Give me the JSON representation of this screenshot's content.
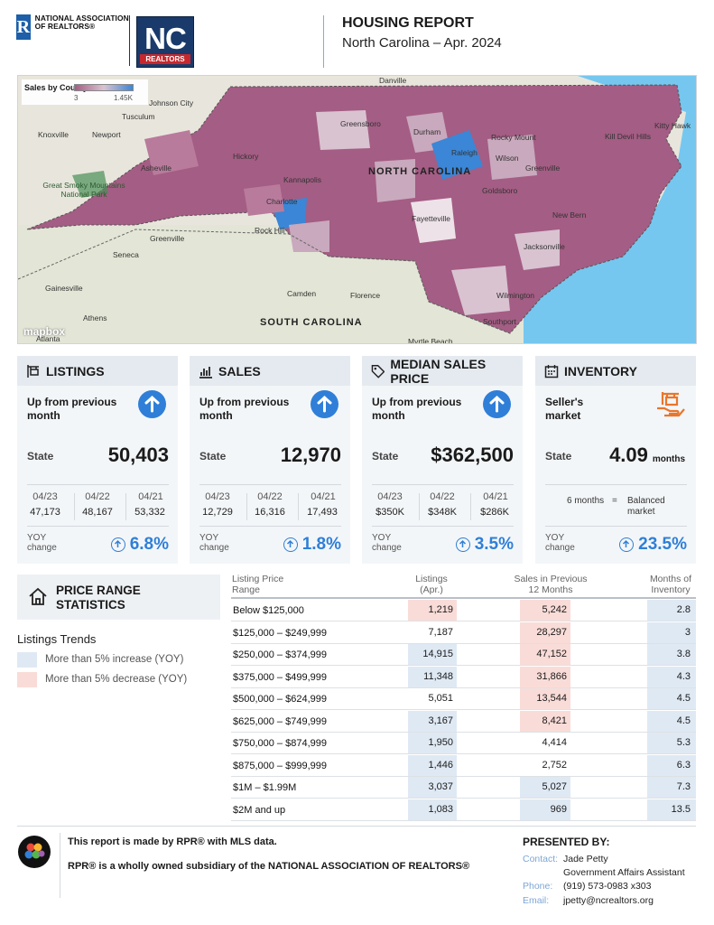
{
  "header": {
    "nar_logo_text": "NATIONAL ASSOCIATION OF REALTORS®",
    "nc_logo_main": "NC",
    "nc_logo_sub": "REALTORS",
    "title": "HOUSING REPORT",
    "subtitle": "North Carolina  –  Apr. 2024"
  },
  "map": {
    "legend_title": "Sales by County",
    "legend_min": "3",
    "legend_max": "1.45K",
    "attribution": "mapbox",
    "state_label": "NORTH CAROLINA",
    "south_label": "SOUTH CAROLINA",
    "place_labels": [
      "Danville",
      "Johnson City",
      "Tusculum",
      "Knoxville",
      "Newport",
      "Greensboro",
      "Durham",
      "Raleigh",
      "Rocky Mount",
      "Wilson",
      "Asheville",
      "Hickory",
      "Kannapolis",
      "Greenville",
      "Goldsboro",
      "Charlotte",
      "Fayetteville",
      "New Bern",
      "Rock Hill",
      "Jacksonville",
      "Greenville",
      "Seneca",
      "Camden",
      "Florence",
      "Wilmington",
      "Athens",
      "Gainesville",
      "Southport",
      "Myrtle Beach",
      "Kill Devil Hills",
      "Great Smoky Mountains National Park",
      "Atlanta",
      "Kitty Hawk"
    ],
    "colors": {
      "low": "#a45d84",
      "mid": "#d9c3d1",
      "high": "#3b86d6",
      "water": "#75c7ef",
      "land": "#e8e6dc"
    }
  },
  "cards": [
    {
      "title": "LISTINGS",
      "icon": "listing-sign-icon",
      "trend": "Up from previous month",
      "state_label": "State",
      "state_value": "50,403",
      "periods": [
        "04/23",
        "04/22",
        "04/21"
      ],
      "values": [
        "47,173",
        "48,167",
        "53,332"
      ],
      "yoy_label": "YOY change",
      "yoy": "6.8%"
    },
    {
      "title": "SALES",
      "icon": "bar-chart-icon",
      "trend": "Up from previous month",
      "state_label": "State",
      "state_value": "12,970",
      "periods": [
        "04/23",
        "04/22",
        "04/21"
      ],
      "values": [
        "12,729",
        "16,316",
        "17,493"
      ],
      "yoy_label": "YOY change",
      "yoy": "1.8%"
    },
    {
      "title": "MEDIAN SALES PRICE",
      "icon": "price-tag-icon",
      "trend": "Up from previous month",
      "state_label": "State",
      "state_value": "$362,500",
      "periods": [
        "04/23",
        "04/22",
        "04/21"
      ],
      "values": [
        "$350K",
        "$348K",
        "$286K"
      ],
      "yoy_label": "YOY change",
      "yoy": "3.5%"
    },
    {
      "title": "INVENTORY",
      "icon": "calendar-icon",
      "trend": "Seller's market",
      "state_label": "State",
      "state_value": "4.09",
      "state_unit": "months",
      "balanced_left": "6 months",
      "balanced_eq": "=",
      "balanced_right": "Balanced market",
      "yoy_label": "YOY change",
      "yoy": "23.5%"
    }
  ],
  "price_range": {
    "title": "PRICE RANGE STATISTICS",
    "trends_title": "Listings Trends",
    "legend_increase": "More than 5% increase (YOY)",
    "legend_decrease": "More than 5% decrease (YOY)",
    "increase_color": "#dfe9f4",
    "decrease_color": "#f9dcd8",
    "headers": {
      "range": "Listing Price Range",
      "listings": "Listings (Apr.)",
      "sales": "Sales in Previous 12 Months",
      "months": "Months of Inventory"
    },
    "rows": [
      {
        "range": "Below $125,000",
        "listings": "1,219",
        "sales": "5,242",
        "months": "2.8",
        "l": "dec",
        "s": "dec"
      },
      {
        "range": "$125,000  –  $249,999",
        "listings": "7,187",
        "sales": "28,297",
        "months": "3",
        "l": "",
        "s": "dec"
      },
      {
        "range": "$250,000  –  $374,999",
        "listings": "14,915",
        "sales": "47,152",
        "months": "3.8",
        "l": "inc",
        "s": "dec"
      },
      {
        "range": "$375,000  –  $499,999",
        "listings": "11,348",
        "sales": "31,866",
        "months": "4.3",
        "l": "inc",
        "s": "dec"
      },
      {
        "range": "$500,000  –  $624,999",
        "listings": "5,051",
        "sales": "13,544",
        "months": "4.5",
        "l": "",
        "s": "dec"
      },
      {
        "range": "$625,000  –  $749,999",
        "listings": "3,167",
        "sales": "8,421",
        "months": "4.5",
        "l": "inc",
        "s": "dec"
      },
      {
        "range": "$750,000  –  $874,999",
        "listings": "1,950",
        "sales": "4,414",
        "months": "5.3",
        "l": "inc",
        "s": ""
      },
      {
        "range": "$875,000  –  $999,999",
        "listings": "1,446",
        "sales": "2,752",
        "months": "6.3",
        "l": "inc",
        "s": ""
      },
      {
        "range": "$1M  –  $1.99M",
        "listings": "3,037",
        "sales": "5,027",
        "months": "7.3",
        "l": "inc",
        "s": "inc"
      },
      {
        "range": "$2M and up",
        "listings": "1,083",
        "sales": "969",
        "months": "13.5",
        "l": "inc",
        "s": "inc"
      }
    ]
  },
  "footer": {
    "line1": "This report is made by RPR® with MLS data.",
    "line2": "RPR® is a wholly owned subsidiary of the NATIONAL ASSOCIATION OF REALTORS®",
    "presented_by": "PRESENTED BY:",
    "contact_label": "Contact:",
    "contact_name": "Jade Petty",
    "contact_title": "Government Affairs Assistant",
    "phone_label": "Phone:",
    "phone": "(919) 573-0983 x303",
    "email_label": "Email:",
    "email": "jpetty@ncrealtors.org"
  }
}
